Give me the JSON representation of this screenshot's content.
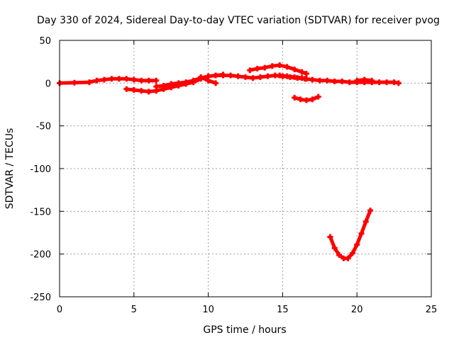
{
  "chart_data": {
    "type": "scatter",
    "title": "Day 330 of 2024, Sidereal Day-to-day VTEC variation (SDTVAR) for receiver pvog",
    "xlabel": "GPS time / hours",
    "ylabel": "SDTVAR / TECUs",
    "xlim": [
      0,
      25
    ],
    "ylim": [
      -250,
      50
    ],
    "x_ticks": [
      0,
      5,
      10,
      15,
      20,
      25
    ],
    "y_ticks": [
      50,
      0,
      -50,
      -100,
      -150,
      -200,
      -250
    ],
    "grid": true,
    "legend": "none",
    "marker_color": "#ff0000",
    "series": [
      {
        "x": [
          0,
          1,
          2,
          2.5,
          3,
          3.5,
          4,
          4.5,
          5,
          5.5,
          6,
          6.5
        ],
        "y": [
          0,
          0.5,
          1,
          3,
          4,
          5,
          5,
          5,
          4,
          3,
          3,
          3
        ]
      },
      {
        "x": [
          4.5,
          5,
          5.5,
          6,
          6.5,
          7,
          7.5,
          8,
          8.5,
          9,
          9.5,
          10,
          10.5,
          11,
          11.5,
          12,
          12.5,
          13,
          13.5,
          14,
          14.5,
          15,
          15.5,
          16,
          16.5,
          17,
          17.5,
          18,
          18.5,
          19,
          19.5,
          20,
          20.5,
          21,
          21.5,
          22,
          22.5,
          22.8
        ],
        "y": [
          -7,
          -8,
          -9,
          -10,
          -9,
          -7,
          -5,
          -3,
          -1,
          1,
          5,
          8,
          9,
          9,
          9,
          8,
          7,
          6,
          7,
          8,
          9,
          8,
          7,
          6,
          5,
          4,
          3,
          3,
          2,
          2,
          1,
          1,
          1,
          1,
          1,
          1,
          1,
          0
        ]
      },
      {
        "x": [
          6.5,
          7,
          7.5,
          8,
          8.5,
          9,
          9.5,
          10,
          10.5,
          11
        ],
        "y": [
          -4,
          -3,
          -1,
          0,
          1,
          3,
          6,
          8,
          9,
          10
        ]
      },
      {
        "x": [
          9.5,
          10,
          10.5
        ],
        "y": [
          7,
          3,
          0
        ]
      },
      {
        "x": [
          12.8,
          13.3,
          13.8,
          14.3,
          14.8,
          15.3,
          15.8,
          16.3,
          16.6
        ],
        "y": [
          15,
          17,
          18,
          20,
          21,
          19,
          16,
          13,
          11
        ]
      },
      {
        "x": [
          14.8,
          15.3,
          15.8,
          16.3,
          16.6
        ],
        "y": [
          9,
          8,
          7,
          6,
          5
        ]
      },
      {
        "x": [
          15.8,
          16.2,
          16.6,
          17,
          17.4
        ],
        "y": [
          -17,
          -19,
          -20,
          -19,
          -16
        ]
      },
      {
        "x": [
          20,
          20.5,
          21
        ],
        "y": [
          3,
          4,
          3
        ]
      },
      {
        "x": [
          18.2,
          18.5,
          18.8,
          19.1,
          19.4,
          19.7,
          20,
          20.3,
          20.6,
          20.9
        ],
        "y": [
          -180,
          -193,
          -201,
          -205,
          -205,
          -199,
          -189,
          -176,
          -162,
          -149
        ]
      }
    ]
  }
}
